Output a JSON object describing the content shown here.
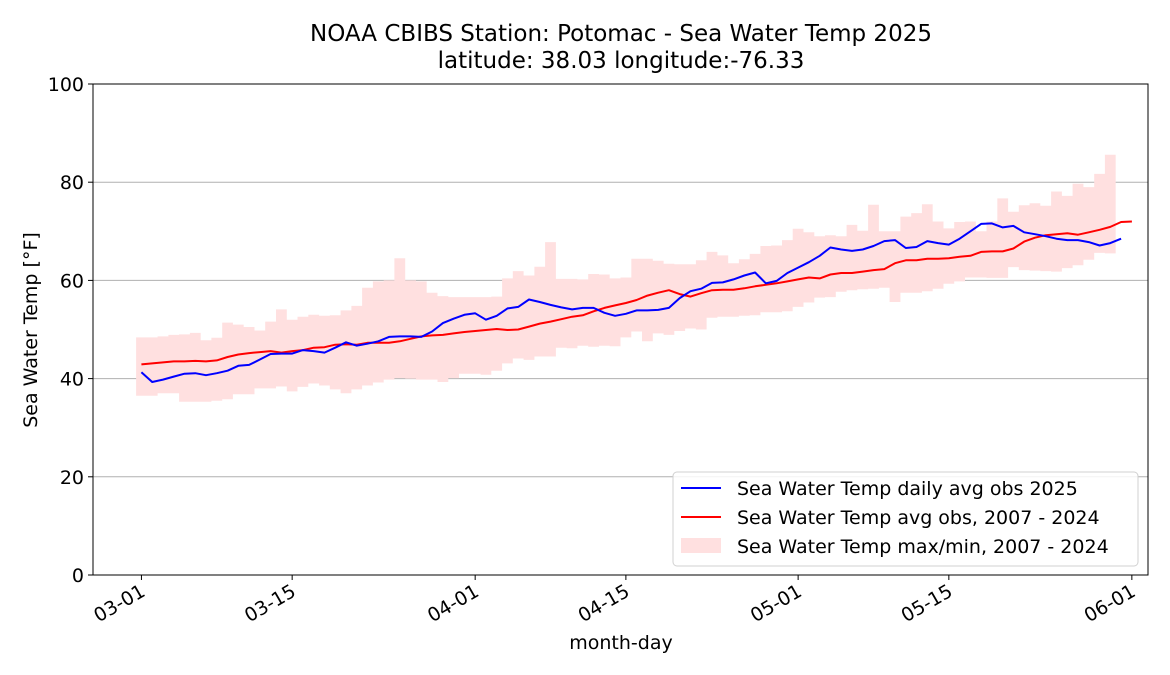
{
  "chart_data": {
    "type": "line",
    "title": "NOAA CBIBS Station: Potomac - Sea Water Temp 2025",
    "subtitle": "latitude: 38.03 longitude:-76.33",
    "xlabel": "month-day",
    "ylabel": "Sea Water Temp [°F]",
    "ylim": [
      0,
      100
    ],
    "yticks": [
      0,
      20,
      40,
      60,
      80,
      100
    ],
    "ytick_labels": [
      "0",
      "20",
      "40",
      "60",
      "80",
      "100"
    ],
    "xlim_day_of_year": [
      55.5,
      153.5
    ],
    "xticks": [
      {
        "label": "03-01",
        "day": 60
      },
      {
        "label": "03-15",
        "day": 74
      },
      {
        "label": "04-01",
        "day": 91
      },
      {
        "label": "04-15",
        "day": 105
      },
      {
        "label": "05-01",
        "day": 121
      },
      {
        "label": "05-15",
        "day": 135
      },
      {
        "label": "06-01",
        "day": 152
      }
    ],
    "grid": "horizontal",
    "legend_position": "lower-right",
    "x_start_day": 60,
    "series": [
      {
        "name": "Sea Water Temp daily avg obs 2025",
        "color": "#0000ff",
        "style": "line",
        "values": [
          41.3,
          39.3,
          39.8,
          40.4,
          41.0,
          41.1,
          40.7,
          41.1,
          41.6,
          42.6,
          42.8,
          43.9,
          45.0,
          45.1,
          45.1,
          45.8,
          45.6,
          45.3,
          46.3,
          47.4,
          46.7,
          47.1,
          47.6,
          48.5,
          48.6,
          48.6,
          48.5,
          49.6,
          51.3,
          52.2,
          53.0,
          53.3,
          52.0,
          52.8,
          54.3,
          54.6,
          56.1,
          55.6,
          55.0,
          54.5,
          54.1,
          54.4,
          54.4,
          53.4,
          52.8,
          53.2,
          53.9,
          53.9,
          54.0,
          54.4,
          56.4,
          57.8,
          58.3,
          59.5,
          59.6,
          60.2,
          61.0,
          61.6,
          59.4,
          59.9,
          61.5,
          62.6,
          63.7,
          65.0,
          66.7,
          66.3,
          66.0,
          66.3,
          67.0,
          68.0,
          68.2,
          66.6,
          66.8,
          68.0,
          67.6,
          67.3,
          68.5,
          70.0,
          71.5,
          71.6,
          70.8,
          71.1,
          69.8,
          69.4,
          69.0,
          68.5,
          68.2,
          68.2,
          67.8,
          67.1,
          67.6,
          68.5
        ]
      },
      {
        "name": "Sea Water Temp avg obs, 2007 - 2024",
        "color": "#ff0000",
        "style": "line",
        "values": [
          42.9,
          43.1,
          43.3,
          43.5,
          43.5,
          43.6,
          43.5,
          43.7,
          44.4,
          44.9,
          45.2,
          45.4,
          45.6,
          45.3,
          45.6,
          45.8,
          46.3,
          46.4,
          46.9,
          47.0,
          46.9,
          47.3,
          47.3,
          47.3,
          47.6,
          48.1,
          48.6,
          48.8,
          48.9,
          49.2,
          49.5,
          49.7,
          49.9,
          50.1,
          49.9,
          50.0,
          50.6,
          51.2,
          51.6,
          52.1,
          52.6,
          52.9,
          53.7,
          54.4,
          54.9,
          55.4,
          56.0,
          56.9,
          57.5,
          58.0,
          57.2,
          56.7,
          57.4,
          58.0,
          58.1,
          58.1,
          58.4,
          58.8,
          59.1,
          59.4,
          59.8,
          60.2,
          60.6,
          60.4,
          61.2,
          61.5,
          61.5,
          61.8,
          62.1,
          62.3,
          63.5,
          64.1,
          64.1,
          64.4,
          64.4,
          64.5,
          64.8,
          65.0,
          65.8,
          65.9,
          65.9,
          66.5,
          67.9,
          68.7,
          69.2,
          69.4,
          69.6,
          69.3,
          69.8,
          70.3,
          70.9,
          71.9,
          72.0
        ]
      },
      {
        "name": "Sea Water Temp max/min, 2007 - 2024",
        "color": "#ffe0e0",
        "style": "band",
        "upper": [
          48.4,
          48.4,
          48.6,
          48.9,
          49.0,
          49.3,
          47.8,
          48.3,
          51.4,
          51.0,
          50.5,
          49.8,
          51.6,
          54.1,
          52.0,
          52.6,
          53.0,
          52.8,
          52.9,
          53.9,
          54.8,
          58.5,
          59.8,
          60.0,
          64.5,
          60.0,
          59.8,
          57.5,
          56.8,
          56.6,
          56.6,
          56.6,
          56.6,
          56.7,
          60.4,
          61.9,
          61.0,
          62.8,
          67.8,
          60.3,
          60.3,
          60.2,
          61.3,
          61.2,
          60.4,
          60.6,
          64.4,
          64.4,
          64.0,
          63.4,
          63.3,
          63.3,
          64.1,
          65.8,
          65.1,
          63.5,
          64.3,
          65.4,
          67.0,
          67.1,
          68.2,
          70.5,
          69.8,
          69.0,
          69.2,
          69.0,
          71.3,
          70.1,
          75.4,
          70.0,
          70.0,
          73.0,
          73.7,
          75.5,
          72.0,
          70.6,
          71.9,
          72.0,
          70.0,
          72.0,
          76.7,
          74.0,
          75.3,
          75.7,
          75.2,
          78.1,
          77.2,
          79.7,
          79.0,
          81.7,
          85.6
        ],
        "lower": [
          36.5,
          36.5,
          37.0,
          37.0,
          35.3,
          35.3,
          35.3,
          35.5,
          35.8,
          36.8,
          36.8,
          38.0,
          38.0,
          38.4,
          37.4,
          38.3,
          39.0,
          38.6,
          37.8,
          37.0,
          37.8,
          38.6,
          39.2,
          39.8,
          40.1,
          40.0,
          39.8,
          39.8,
          39.3,
          40.1,
          41.0,
          41.0,
          40.8,
          41.6,
          43.1,
          44.1,
          43.8,
          44.5,
          44.5,
          46.3,
          46.2,
          46.7,
          46.5,
          46.7,
          46.6,
          48.4,
          49.6,
          47.6,
          49.2,
          48.9,
          49.7,
          50.2,
          50.0,
          52.4,
          52.6,
          52.6,
          52.8,
          52.9,
          53.5,
          53.5,
          53.7,
          54.6,
          55.5,
          56.5,
          56.6,
          57.7,
          58.0,
          58.2,
          58.3,
          58.5,
          55.6,
          57.5,
          57.5,
          57.8,
          58.3,
          59.3,
          59.8,
          60.6,
          60.6,
          60.5,
          60.5,
          62.7,
          62.1,
          62.0,
          61.9,
          61.8,
          62.5,
          63.1,
          64.2,
          65.6,
          65.5
        ]
      }
    ]
  },
  "legend": {
    "items": [
      {
        "label": "Sea Water Temp daily avg obs 2025",
        "kind": "line",
        "color": "#0000ff"
      },
      {
        "label": "Sea Water Temp avg obs, 2007 - 2024",
        "kind": "line",
        "color": "#ff0000"
      },
      {
        "label": "Sea Water Temp max/min, 2007 - 2024",
        "kind": "patch",
        "color": "#ffe0e0"
      }
    ]
  }
}
